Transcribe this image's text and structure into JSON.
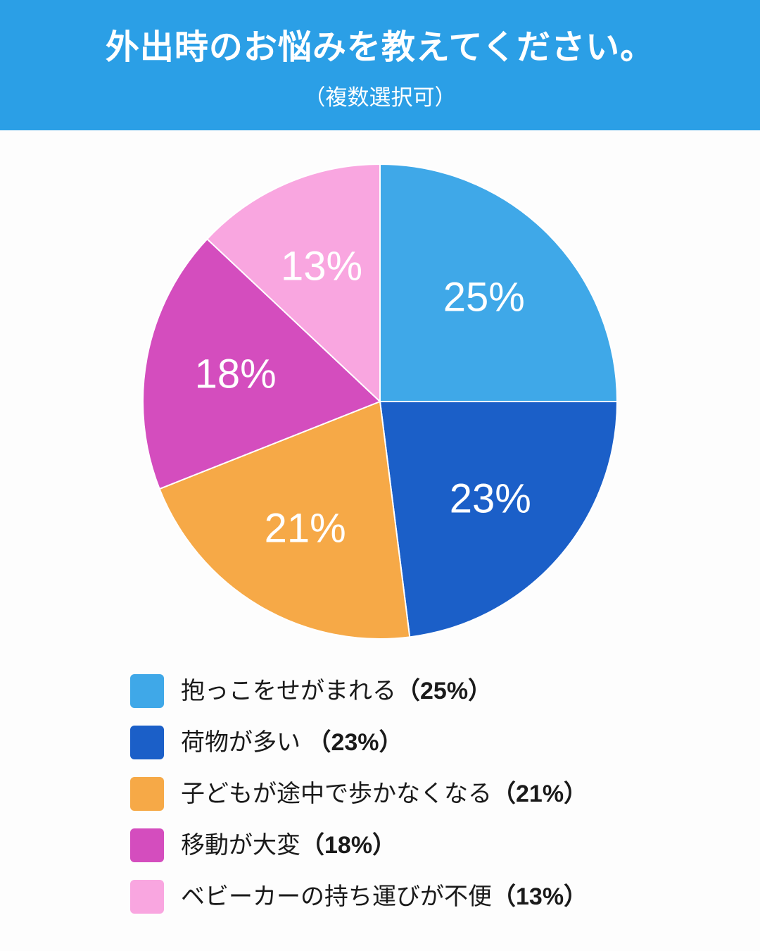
{
  "header": {
    "title": "外出時のお悩みを教えてください。",
    "subtitle": "（複数選択可）",
    "background_color": "#2B9FE6",
    "text_color": "#FFFFFF"
  },
  "chart_data": {
    "type": "pie",
    "title": "外出時のお悩みを教えてください。",
    "subtitle": "（複数選択可）",
    "start_angle": "top",
    "direction": "clockwise",
    "legend_position": "bottom",
    "label_color": "#FFFFFF",
    "slices": [
      {
        "label": "抱っこをせがまれる",
        "value": 25,
        "pct_label": "25%",
        "paren_pct": "（25%）",
        "color": "#3FA8E8"
      },
      {
        "label": "荷物が多い ",
        "value": 23,
        "pct_label": "23%",
        "paren_pct": "（23%）",
        "color": "#1B5FC8"
      },
      {
        "label": "子どもが途中で歩かなくなる",
        "value": 21,
        "pct_label": "21%",
        "paren_pct": "（21%）",
        "color": "#F6A947"
      },
      {
        "label": "移動が大変",
        "value": 18,
        "pct_label": "18%",
        "paren_pct": "（18%）",
        "color": "#D44DBE"
      },
      {
        "label": "ベビーカーの持ち運びが不便",
        "value": 13,
        "pct_label": "13%",
        "paren_pct": "（13%）",
        "color": "#F9A6E0"
      }
    ]
  }
}
